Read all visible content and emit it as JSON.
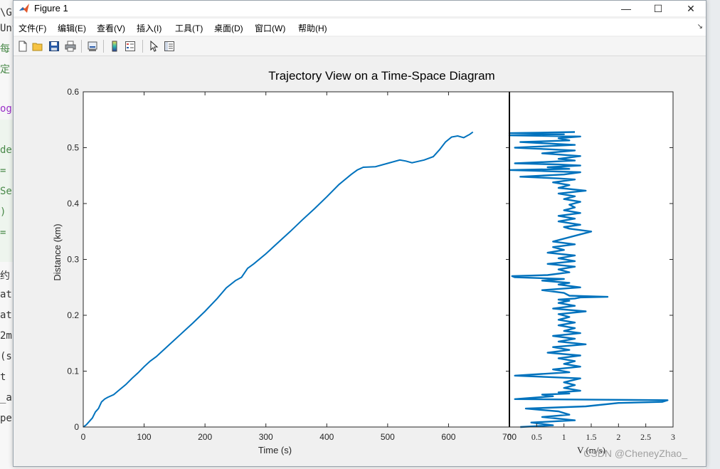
{
  "window": {
    "title": "Figure 1",
    "menu": [
      "文件(F)",
      "编辑(E)",
      "查看(V)",
      "插入(I)",
      "工具(T)",
      "桌面(D)",
      "窗口(W)",
      "帮助(H)"
    ],
    "toolbar_icons": [
      "new-figure-icon",
      "open-file-icon",
      "save-icon",
      "print-icon",
      "link-icon",
      "colorbar-icon",
      "legend-icon",
      "pointer-icon",
      "property-inspector-icon"
    ],
    "controls": {
      "minimize": "—",
      "maximize": "☐",
      "close": "✕"
    }
  },
  "background": {
    "tab_fragment": "\\Gc",
    "tab_fragment2": "Unt",
    "code_fragments": [
      "每",
      "定",
      "og",
      "de",
      "=",
      "Se",
      ")",
      "=",
      "约",
      "at",
      "at",
      "2m",
      "(s",
      "t",
      "_a",
      "pe"
    ]
  },
  "watermark": "CSDN @CheneyZhao_",
  "chart_data": [
    {
      "type": "line",
      "title": "Trajectory View on a Time-Space Diagram",
      "xlabel": "Time (s)",
      "ylabel": "Distance (km)",
      "xlim": [
        0,
        700
      ],
      "ylim": [
        0,
        0.6
      ],
      "xticks": [
        0,
        100,
        200,
        300,
        400,
        500,
        600,
        700
      ],
      "yticks": [
        0,
        0.1,
        0.2,
        0.3,
        0.4,
        0.5,
        0.6
      ],
      "color": "#0072bd",
      "series": [
        {
          "x": [
            0,
            5,
            10,
            15,
            20,
            25,
            30,
            35,
            40,
            50,
            60,
            70,
            80,
            90,
            100,
            110,
            120,
            140,
            160,
            180,
            200,
            220,
            235,
            250,
            260,
            270,
            280,
            300,
            320,
            340,
            360,
            380,
            400,
            420,
            440,
            450,
            460,
            480,
            500,
            520,
            530,
            540,
            560,
            575,
            585,
            595,
            605,
            615,
            625,
            635,
            640
          ],
          "y": [
            0,
            0.004,
            0.01,
            0.016,
            0.027,
            0.033,
            0.045,
            0.05,
            0.053,
            0.058,
            0.067,
            0.076,
            0.087,
            0.097,
            0.108,
            0.118,
            0.126,
            0.146,
            0.166,
            0.186,
            0.207,
            0.23,
            0.249,
            0.262,
            0.268,
            0.284,
            0.292,
            0.31,
            0.33,
            0.35,
            0.371,
            0.391,
            0.412,
            0.434,
            0.452,
            0.46,
            0.465,
            0.466,
            0.472,
            0.478,
            0.476,
            0.473,
            0.478,
            0.484,
            0.496,
            0.51,
            0.519,
            0.521,
            0.518,
            0.524,
            0.528
          ]
        }
      ]
    },
    {
      "type": "line",
      "xlabel": "V (m/s)",
      "xlim": [
        0,
        3
      ],
      "ylim": [
        0,
        0.6
      ],
      "xticks": [
        0,
        0.5,
        1,
        1.5,
        2,
        2.5,
        3
      ],
      "color": "#0072bd",
      "series": [
        {
          "v": [
            0.2,
            0.8,
            0.4,
            1.2,
            0.6,
            1.1,
            0.9,
            0.3,
            1.4,
            2.0,
            2.8,
            2.9,
            0.1,
            0.8,
            0.6,
            1.1,
            0.9,
            1.3,
            1.0,
            1.2,
            1.0,
            1.3,
            0.1,
            1.1,
            0.8,
            1.3,
            1.0,
            1.2,
            0.9,
            1.3,
            0.7,
            1.1,
            0.8,
            1.4,
            0.9,
            1.2,
            0.8,
            1.3,
            1.0,
            1.2,
            0.9,
            1.2,
            0.9,
            1.1,
            0.9,
            1.4,
            0.8,
            1.2,
            0.9,
            1.1,
            0.9,
            1.2,
            1.3,
            1.8,
            1.1,
            1.0,
            0.6,
            1.3,
            0.9,
            1.1,
            0.6,
            1.0,
            0.1,
            0.05,
            0.7,
            1.1,
            0.9,
            1.2,
            0.7,
            1.2,
            0.9,
            1.2,
            0.7,
            1.0,
            0.8,
            1.2,
            0.8,
            1.5,
            1.1,
            1.0,
            1.3,
            0.9,
            1.2,
            0.9,
            1.3,
            1.0,
            1.2,
            1.1,
            1.3,
            1.0,
            1.2,
            0.9,
            1.4,
            0.9,
            1.1,
            0.8,
            1.2,
            0.9,
            0.2,
            1.0,
            1.3,
            0.0,
            1.1,
            0.7,
            1.3,
            0.9,
            0.1,
            0.8,
            1.2,
            0.9,
            1.3,
            0.6,
            1.2,
            0.1,
            1.2,
            0.2,
            1.1,
            0.9,
            1.3,
            0.0,
            1.0,
            0.0,
            1.2
          ],
          "y": [
            0.0,
            0.003,
            0.008,
            0.012,
            0.018,
            0.022,
            0.028,
            0.033,
            0.037,
            0.043,
            0.045,
            0.048,
            0.05,
            0.055,
            0.058,
            0.06,
            0.062,
            0.065,
            0.07,
            0.075,
            0.08,
            0.087,
            0.092,
            0.098,
            0.103,
            0.108,
            0.113,
            0.118,
            0.123,
            0.128,
            0.133,
            0.138,
            0.143,
            0.148,
            0.153,
            0.158,
            0.163,
            0.168,
            0.172,
            0.177,
            0.182,
            0.187,
            0.192,
            0.197,
            0.202,
            0.207,
            0.212,
            0.217,
            0.222,
            0.226,
            0.228,
            0.23,
            0.232,
            0.233,
            0.235,
            0.24,
            0.245,
            0.25,
            0.255,
            0.258,
            0.262,
            0.265,
            0.268,
            0.27,
            0.272,
            0.277,
            0.282,
            0.287,
            0.292,
            0.297,
            0.302,
            0.307,
            0.312,
            0.317,
            0.322,
            0.327,
            0.332,
            0.35,
            0.355,
            0.358,
            0.362,
            0.368,
            0.373,
            0.378,
            0.383,
            0.388,
            0.393,
            0.398,
            0.403,
            0.408,
            0.413,
            0.418,
            0.423,
            0.428,
            0.433,
            0.438,
            0.443,
            0.445,
            0.448,
            0.452,
            0.456,
            0.46,
            0.462,
            0.465,
            0.468,
            0.47,
            0.472,
            0.475,
            0.477,
            0.48,
            0.485,
            0.49,
            0.495,
            0.5,
            0.505,
            0.51,
            0.513,
            0.517,
            0.52,
            0.522,
            0.524,
            0.526,
            0.528
          ]
        }
      ]
    }
  ]
}
